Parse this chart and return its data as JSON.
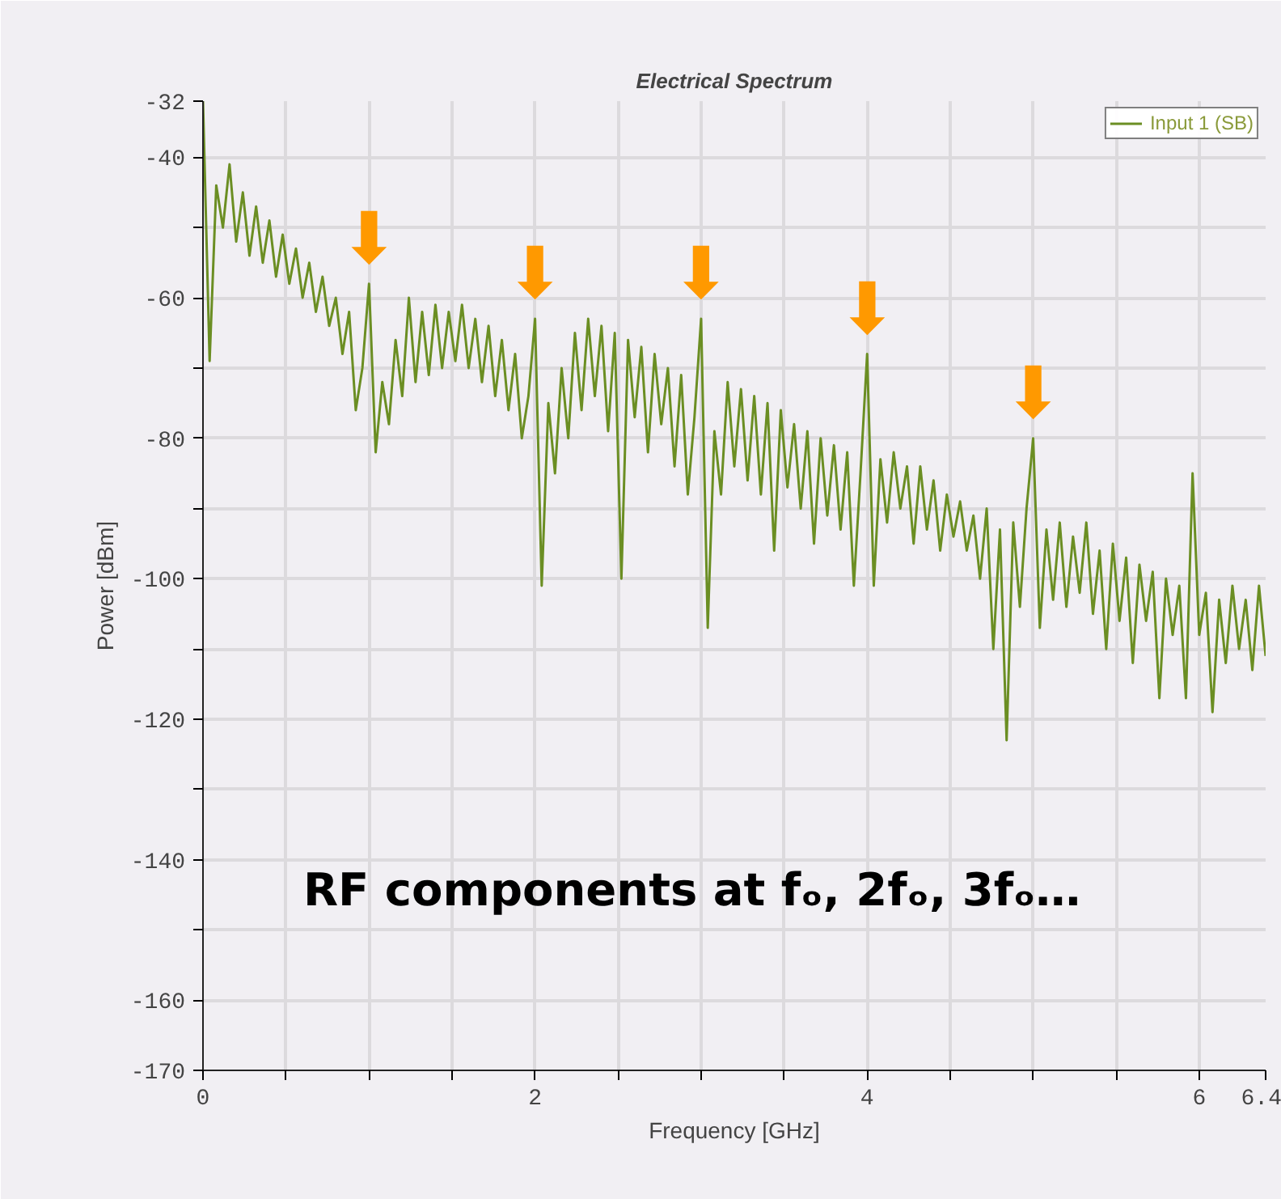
{
  "chart_data": {
    "type": "line",
    "title": "Electrical Spectrum",
    "xlabel": "Frequency [GHz]",
    "ylabel": "Power [dBm]",
    "x": [
      0,
      0.04,
      0.08,
      0.12,
      0.16,
      0.2,
      0.24,
      0.28,
      0.32,
      0.36,
      0.4,
      0.44,
      0.48,
      0.52,
      0.56,
      0.6,
      0.64,
      0.68,
      0.72,
      0.76,
      0.8,
      0.84,
      0.88,
      0.92,
      0.96,
      1.0,
      1.04,
      1.08,
      1.12,
      1.16,
      1.2,
      1.24,
      1.28,
      1.32,
      1.36,
      1.4,
      1.44,
      1.48,
      1.52,
      1.56,
      1.6,
      1.64,
      1.68,
      1.72,
      1.76,
      1.8,
      1.84,
      1.88,
      1.92,
      1.96,
      2.0,
      2.04,
      2.08,
      2.12,
      2.16,
      2.2,
      2.24,
      2.28,
      2.32,
      2.36,
      2.4,
      2.44,
      2.48,
      2.52,
      2.56,
      2.6,
      2.64,
      2.68,
      2.72,
      2.76,
      2.8,
      2.84,
      2.88,
      2.92,
      2.96,
      3.0,
      3.04,
      3.08,
      3.12,
      3.16,
      3.2,
      3.24,
      3.28,
      3.32,
      3.36,
      3.4,
      3.44,
      3.48,
      3.52,
      3.56,
      3.6,
      3.64,
      3.68,
      3.72,
      3.76,
      3.8,
      3.84,
      3.88,
      3.92,
      3.96,
      4.0,
      4.04,
      4.08,
      4.12,
      4.16,
      4.2,
      4.24,
      4.28,
      4.32,
      4.36,
      4.4,
      4.44,
      4.48,
      4.52,
      4.56,
      4.6,
      4.64,
      4.68,
      4.72,
      4.76,
      4.8,
      4.84,
      4.88,
      4.92,
      4.96,
      5.0,
      5.04,
      5.08,
      5.12,
      5.16,
      5.2,
      5.24,
      5.28,
      5.32,
      5.36,
      5.4,
      5.44,
      5.48,
      5.52,
      5.56,
      5.6,
      5.64,
      5.68,
      5.72,
      5.76,
      5.8,
      5.84,
      5.88,
      5.92,
      5.96,
      6.0,
      6.04,
      6.08,
      6.12,
      6.16,
      6.2,
      6.24,
      6.28,
      6.32,
      6.36,
      6.4
    ],
    "series": [
      {
        "name": "Input 1 (SB)",
        "color": "#6b8e23",
        "values": [
          -32,
          -69,
          -44,
          -50,
          -41,
          -52,
          -45,
          -54,
          -47,
          -55,
          -49,
          -57,
          -51,
          -58,
          -53,
          -60,
          -55,
          -62,
          -57,
          -64,
          -60,
          -68,
          -62,
          -76,
          -70,
          -58,
          -82,
          -72,
          -78,
          -66,
          -74,
          -60,
          -72,
          -62,
          -71,
          -61,
          -70,
          -62,
          -69,
          -61,
          -70,
          -63,
          -72,
          -64,
          -74,
          -66,
          -76,
          -68,
          -80,
          -74,
          -63,
          -101,
          -75,
          -85,
          -70,
          -80,
          -65,
          -76,
          -63,
          -74,
          -64,
          -79,
          -65,
          -100,
          -66,
          -77,
          -67,
          -82,
          -68,
          -78,
          -70,
          -84,
          -71,
          -88,
          -77,
          -63,
          -107,
          -79,
          -88,
          -72,
          -84,
          -73,
          -86,
          -74,
          -88,
          -75,
          -96,
          -76,
          -87,
          -78,
          -90,
          -79,
          -95,
          -80,
          -91,
          -81,
          -93,
          -82,
          -101,
          -85,
          -68,
          -101,
          -83,
          -92,
          -82,
          -90,
          -84,
          -95,
          -84,
          -93,
          -86,
          -96,
          -88,
          -94,
          -89,
          -96,
          -91,
          -100,
          -90,
          -110,
          -93,
          -123,
          -92,
          -104,
          -90,
          -80,
          -107,
          -93,
          -103,
          -92,
          -104,
          -94,
          -102,
          -92,
          -105,
          -96,
          -110,
          -95,
          -106,
          -97,
          -112,
          -98,
          -106,
          -99,
          -117,
          -100,
          -108,
          -101,
          -117,
          -85,
          -108,
          -102,
          -119,
          -103,
          -112,
          -101,
          -110,
          -103,
          -113,
          -101,
          -111
        ]
      }
    ],
    "xlim": [
      0,
      6.4
    ],
    "xticks": [
      0,
      {
        "value": 0.5,
        "label": null
      },
      {
        "value": 1,
        "label": null
      },
      {
        "value": 1.5,
        "label": null
      },
      2,
      {
        "value": 2.5,
        "label": null
      },
      {
        "value": 3,
        "label": null
      },
      {
        "value": 3.5,
        "label": null
      },
      4,
      {
        "value": 4.5,
        "label": null
      },
      {
        "value": 5,
        "label": null
      },
      {
        "value": 5.5,
        "label": null
      },
      6,
      6.4
    ],
    "ylim": [
      -170,
      -32
    ],
    "yticks": [
      -170,
      -160,
      {
        "value": -150,
        "label": null
      },
      -140,
      {
        "value": -130,
        "label": null
      },
      -120,
      {
        "value": -110,
        "label": null
      },
      -100,
      {
        "value": -90,
        "label": null
      },
      -80,
      {
        "value": -70,
        "label": null
      },
      -60,
      {
        "value": -50,
        "label": null
      },
      -40,
      -32
    ],
    "grid": true,
    "legend": "top right",
    "marker": "none",
    "line_style": "solid",
    "annotations": [
      "RF components at fₒ, 2fₒ, 3fₒ…",
      {
        "text": "⬇",
        "x": 1,
        "y": -58
      },
      {
        "text": "⬇",
        "x": 2,
        "y": -63
      },
      {
        "text": "⬇",
        "x": 3,
        "y": -63
      },
      {
        "text": "⬇",
        "x": 4,
        "y": -68
      },
      {
        "text": "⬇",
        "x": 5,
        "y": -80
      }
    ]
  }
}
